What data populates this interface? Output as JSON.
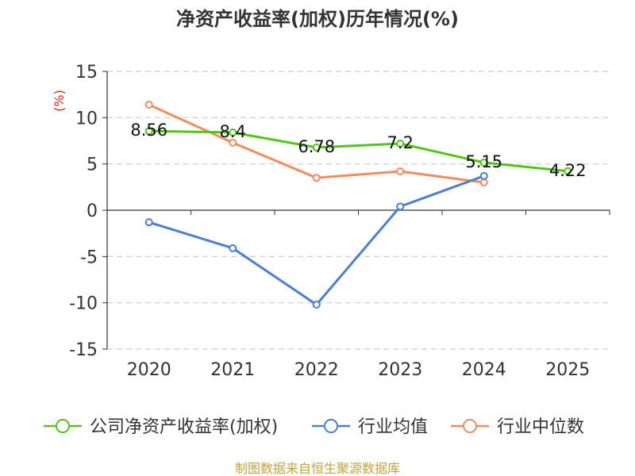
{
  "chart_data": {
    "type": "line",
    "title": "净资产收益率(加权)历年情况(%)",
    "ylabel": "(%)",
    "xlabel": "",
    "categories": [
      "2020",
      "2021",
      "2022",
      "2023",
      "2024",
      "2025"
    ],
    "ylim": [
      -15,
      15
    ],
    "yticks": [
      15,
      10,
      5,
      0,
      -5,
      -10,
      -15
    ],
    "grid": true,
    "legend_position": "bottom",
    "series": [
      {
        "name": "公司净资产收益率(加权)",
        "color": "#52c41a",
        "values": [
          8.56,
          8.4,
          6.78,
          7.2,
          5.15,
          4.22
        ],
        "labels": [
          "8.56",
          "8.4",
          "6.78",
          "7.2",
          "5.15",
          "4.22"
        ]
      },
      {
        "name": "行业均值",
        "color": "#4a7fd6",
        "values": [
          -1.3,
          -4.1,
          -10.2,
          0.4,
          3.7,
          null
        ]
      },
      {
        "name": "行业中位数",
        "color": "#f28c5a",
        "values": [
          11.4,
          7.3,
          3.5,
          4.2,
          3.0,
          null
        ]
      }
    ],
    "source": "制图数据来自恒生聚源数据库"
  }
}
